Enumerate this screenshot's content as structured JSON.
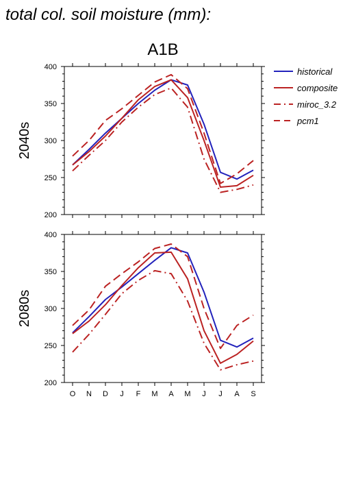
{
  "page_title": "total col. soil moisture (mm):",
  "chart_data": {
    "type": "line",
    "title": "A1B",
    "categories": [
      "O",
      "N",
      "D",
      "J",
      "F",
      "M",
      "A",
      "M",
      "J",
      "J",
      "A",
      "S"
    ],
    "ylim": [
      200,
      400
    ],
    "yticks": [
      200,
      250,
      300,
      350,
      400
    ],
    "grid": false,
    "legend_position": "top-right, outside plot",
    "legend": [
      {
        "name": "historical",
        "color": "#2222bb",
        "dash": "solid"
      },
      {
        "name": "composite",
        "color": "#bb2222",
        "dash": "solid"
      },
      {
        "name": "miroc_3.2",
        "color": "#bb2222",
        "dash": "dashdot"
      },
      {
        "name": "pcm1",
        "color": "#bb2222",
        "dash": "dashed"
      }
    ],
    "panels": [
      {
        "label": "2040s",
        "series": [
          {
            "name": "historical",
            "values": [
              267,
              288,
              310,
              330,
              350,
              368,
              382,
              375,
              322,
              257,
              248,
              260
            ]
          },
          {
            "name": "composite",
            "values": [
              267,
              285,
              306,
              330,
              355,
              373,
              382,
              358,
              300,
              237,
              239,
              253
            ]
          },
          {
            "name": "miroc_3.2",
            "values": [
              259,
              280,
              300,
              325,
              345,
              362,
              371,
              345,
              275,
              230,
              234,
              240
            ]
          },
          {
            "name": "pcm1",
            "values": [
              279,
              300,
              327,
              343,
              361,
              379,
              389,
              370,
              310,
              242,
              255,
              273
            ]
          }
        ]
      },
      {
        "label": "2080s",
        "series": [
          {
            "name": "historical",
            "values": [
              267,
              289,
              312,
              329,
              347,
              365,
              382,
              375,
              322,
              257,
              248,
              260
            ]
          },
          {
            "name": "composite",
            "values": [
              266,
              283,
              305,
              331,
              355,
              375,
              376,
              340,
              270,
              226,
              238,
              256
            ]
          },
          {
            "name": "miroc_3.2",
            "values": [
              241,
              265,
              292,
              320,
              338,
              351,
              347,
              310,
              253,
              217,
              224,
              229
            ]
          },
          {
            "name": "pcm1",
            "values": [
              277,
              298,
              330,
              347,
              363,
              381,
              387,
              370,
              300,
              246,
              277,
              291
            ]
          }
        ]
      }
    ]
  }
}
